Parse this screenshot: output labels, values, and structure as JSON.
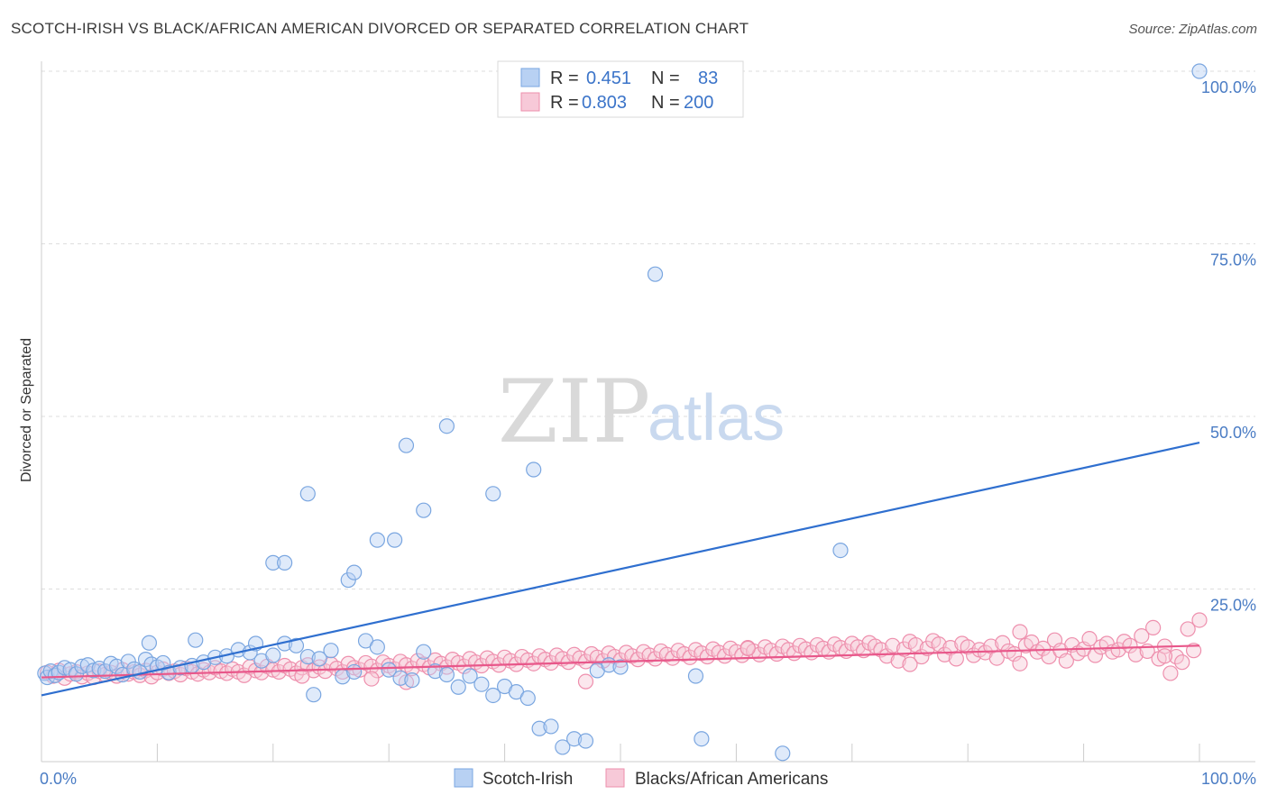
{
  "title": "SCOTCH-IRISH VS BLACK/AFRICAN AMERICAN DIVORCED OR SEPARATED CORRELATION CHART",
  "source": "Source: ZipAtlas.com",
  "watermark": {
    "zip": "ZIP",
    "atlas": "atlas"
  },
  "colors": {
    "blue_stroke": "#7aa6e0",
    "blue_fill": "#b8d1f3",
    "blue_line": "#2f6fcf",
    "pink_stroke": "#ee8fad",
    "pink_fill": "#f7c9d8",
    "pink_line": "#e8578a",
    "grid": "#dddddd",
    "axis_text": "#4a7cc4"
  },
  "legend": {
    "rows": [
      {
        "r_label": "R =",
        "r_value": "0.451",
        "n_label": "N =",
        "n_value": "83"
      },
      {
        "r_label": "R =",
        "r_value": "0.803",
        "n_label": "N =",
        "n_value": "200"
      }
    ]
  },
  "bottom_legend": [
    "Scotch-Irish",
    "Blacks/African Americans"
  ],
  "chart_data": {
    "type": "scatter",
    "ylabel": "Divorced or Separated",
    "xlabel": "",
    "xlim": [
      0,
      100
    ],
    "ylim": [
      0,
      100
    ],
    "x_tick_labels": [
      "0.0%",
      "100.0%"
    ],
    "y_tick_labels": [
      "25.0%",
      "50.0%",
      "75.0%",
      "100.0%"
    ],
    "y_ticks": [
      25,
      50,
      75,
      100
    ],
    "grid": true,
    "legend_position": "top-center",
    "series": [
      {
        "name": "Scotch-Irish",
        "r": 0.451,
        "n": 83,
        "trend": {
          "x": [
            0,
            100
          ],
          "y": [
            9.6,
            46.2
          ]
        },
        "points": [
          [
            0.3,
            12.8
          ],
          [
            0.5,
            12.2
          ],
          [
            0.8,
            13.1
          ],
          [
            1.2,
            12.5
          ],
          [
            1.5,
            12.9
          ],
          [
            2,
            13.6
          ],
          [
            2.5,
            13.3
          ],
          [
            3,
            12.7
          ],
          [
            3.5,
            13.8
          ],
          [
            4,
            14.0
          ],
          [
            4.5,
            13.2
          ],
          [
            5,
            13.5
          ],
          [
            5.5,
            13.1
          ],
          [
            6,
            14.2
          ],
          [
            6.5,
            13.8
          ],
          [
            7,
            12.6
          ],
          [
            7.5,
            14.5
          ],
          [
            8,
            13.4
          ],
          [
            8.5,
            13.0
          ],
          [
            9,
            14.8
          ],
          [
            9.5,
            14.1
          ],
          [
            10,
            13.7
          ],
          [
            10.5,
            14.3
          ],
          [
            11,
            12.9
          ],
          [
            12,
            13.6
          ],
          [
            13,
            13.9
          ],
          [
            14,
            14.4
          ],
          [
            15,
            15.1
          ],
          [
            16,
            15.3
          ],
          [
            17,
            16.2
          ],
          [
            18,
            15.8
          ],
          [
            19,
            14.6
          ],
          [
            20,
            15.4
          ],
          [
            21,
            17.1
          ],
          [
            22,
            16.8
          ],
          [
            23,
            15.2
          ],
          [
            24,
            14.9
          ],
          [
            25,
            16.1
          ],
          [
            26,
            12.3
          ],
          [
            27,
            13.0
          ],
          [
            28,
            17.5
          ],
          [
            29,
            16.6
          ],
          [
            30,
            13.3
          ],
          [
            31,
            12.1
          ],
          [
            32,
            11.8
          ],
          [
            33,
            15.9
          ],
          [
            34,
            13.1
          ],
          [
            35,
            12.6
          ],
          [
            36,
            10.8
          ],
          [
            37,
            12.4
          ],
          [
            38,
            11.2
          ],
          [
            39,
            9.6
          ],
          [
            40,
            10.9
          ],
          [
            41,
            10.1
          ],
          [
            42,
            9.2
          ],
          [
            43,
            4.8
          ],
          [
            44,
            5.1
          ],
          [
            45,
            2.1
          ],
          [
            46,
            3.3
          ],
          [
            47,
            3.0
          ],
          [
            48,
            13.2
          ],
          [
            49,
            14.0
          ],
          [
            50,
            13.7
          ],
          [
            9.3,
            17.2
          ],
          [
            13.3,
            17.6
          ],
          [
            18.5,
            17.1
          ],
          [
            20,
            28.8
          ],
          [
            21,
            28.8
          ],
          [
            23,
            38.8
          ],
          [
            23.5,
            9.7
          ],
          [
            26.5,
            26.3
          ],
          [
            27,
            27.4
          ],
          [
            29,
            32.1
          ],
          [
            30.5,
            32.1
          ],
          [
            31.5,
            45.8
          ],
          [
            33,
            36.4
          ],
          [
            35,
            48.6
          ],
          [
            39,
            38.8
          ],
          [
            42.5,
            42.3
          ],
          [
            53,
            70.6
          ],
          [
            57,
            3.3
          ],
          [
            69,
            30.6
          ],
          [
            100,
            100
          ],
          [
            56.5,
            12.4
          ],
          [
            64,
            1.2
          ]
        ]
      },
      {
        "name": "Blacks/African Americans",
        "r": 0.803,
        "n": 200,
        "trend": {
          "x": [
            0,
            100
          ],
          "y": [
            12.2,
            16.8
          ]
        },
        "points": [
          [
            0.5,
            12.9
          ],
          [
            1,
            12.4
          ],
          [
            1.5,
            13.2
          ],
          [
            2,
            12.1
          ],
          [
            2.5,
            12.7
          ],
          [
            3,
            13.0
          ],
          [
            3.5,
            12.3
          ],
          [
            4,
            12.8
          ],
          [
            4.5,
            12.2
          ],
          [
            5,
            13.1
          ],
          [
            5.5,
            12.6
          ],
          [
            6,
            12.9
          ],
          [
            6.5,
            12.4
          ],
          [
            7,
            13.3
          ],
          [
            7.5,
            12.7
          ],
          [
            8,
            13.0
          ],
          [
            8.5,
            12.5
          ],
          [
            9,
            13.2
          ],
          [
            9.5,
            12.3
          ],
          [
            10,
            12.9
          ],
          [
            10.5,
            13.4
          ],
          [
            11,
            12.8
          ],
          [
            11.5,
            13.1
          ],
          [
            12,
            12.6
          ],
          [
            12.5,
            13.5
          ],
          [
            13,
            13.0
          ],
          [
            13.5,
            12.7
          ],
          [
            14,
            13.3
          ],
          [
            14.5,
            12.9
          ],
          [
            15,
            13.6
          ],
          [
            15.5,
            13.1
          ],
          [
            16,
            12.8
          ],
          [
            16.5,
            13.4
          ],
          [
            17,
            13.0
          ],
          [
            17.5,
            12.5
          ],
          [
            18,
            13.7
          ],
          [
            18.5,
            13.2
          ],
          [
            19,
            12.9
          ],
          [
            19.5,
            13.8
          ],
          [
            20,
            13.3
          ],
          [
            20.5,
            13.0
          ],
          [
            21,
            13.9
          ],
          [
            21.5,
            13.4
          ],
          [
            22,
            12.8
          ],
          [
            22.5,
            13.6
          ],
          [
            23,
            14.0
          ],
          [
            23.5,
            13.2
          ],
          [
            24,
            13.7
          ],
          [
            24.5,
            13.1
          ],
          [
            25,
            14.1
          ],
          [
            25.5,
            13.5
          ],
          [
            26,
            13.0
          ],
          [
            26.5,
            14.2
          ],
          [
            27,
            13.6
          ],
          [
            27.5,
            13.3
          ],
          [
            28,
            14.3
          ],
          [
            28.5,
            13.8
          ],
          [
            29,
            13.2
          ],
          [
            29.5,
            14.4
          ],
          [
            30,
            13.9
          ],
          [
            30.5,
            13.4
          ],
          [
            31,
            14.5
          ],
          [
            31.5,
            14.0
          ],
          [
            32,
            13.5
          ],
          [
            32.5,
            14.6
          ],
          [
            33,
            14.1
          ],
          [
            33.5,
            13.6
          ],
          [
            34,
            14.7
          ],
          [
            34.5,
            14.2
          ],
          [
            35,
            13.7
          ],
          [
            35.5,
            14.8
          ],
          [
            36,
            14.3
          ],
          [
            36.5,
            13.8
          ],
          [
            37,
            14.9
          ],
          [
            37.5,
            14.4
          ],
          [
            38,
            13.9
          ],
          [
            38.5,
            15.0
          ],
          [
            39,
            14.5
          ],
          [
            39.5,
            14.0
          ],
          [
            40,
            15.1
          ],
          [
            40.5,
            14.6
          ],
          [
            41,
            14.1
          ],
          [
            41.5,
            15.2
          ],
          [
            42,
            14.7
          ],
          [
            42.5,
            14.2
          ],
          [
            43,
            15.3
          ],
          [
            43.5,
            14.8
          ],
          [
            44,
            14.3
          ],
          [
            44.5,
            15.4
          ],
          [
            45,
            14.9
          ],
          [
            45.5,
            14.4
          ],
          [
            46,
            15.5
          ],
          [
            46.5,
            15.0
          ],
          [
            47,
            14.5
          ],
          [
            47.5,
            15.6
          ],
          [
            48,
            15.1
          ],
          [
            48.5,
            14.6
          ],
          [
            49,
            15.7
          ],
          [
            49.5,
            15.2
          ],
          [
            50,
            14.7
          ],
          [
            50.5,
            15.8
          ],
          [
            51,
            15.3
          ],
          [
            51.5,
            14.8
          ],
          [
            52,
            15.9
          ],
          [
            52.5,
            15.4
          ],
          [
            53,
            14.9
          ],
          [
            53.5,
            16.0
          ],
          [
            54,
            15.5
          ],
          [
            54.5,
            15.0
          ],
          [
            55,
            16.1
          ],
          [
            55.5,
            15.6
          ],
          [
            56,
            15.1
          ],
          [
            56.5,
            16.2
          ],
          [
            57,
            15.7
          ],
          [
            57.5,
            15.2
          ],
          [
            58,
            16.3
          ],
          [
            58.5,
            15.8
          ],
          [
            59,
            15.3
          ],
          [
            59.5,
            16.4
          ],
          [
            60,
            15.9
          ],
          [
            60.5,
            15.4
          ],
          [
            61,
            16.5
          ],
          [
            61.5,
            16.0
          ],
          [
            62,
            15.5
          ],
          [
            62.5,
            16.6
          ],
          [
            63,
            16.1
          ],
          [
            63.5,
            15.6
          ],
          [
            64,
            16.7
          ],
          [
            64.5,
            16.2
          ],
          [
            65,
            15.7
          ],
          [
            65.5,
            16.8
          ],
          [
            66,
            16.3
          ],
          [
            66.5,
            15.8
          ],
          [
            67,
            16.9
          ],
          [
            67.5,
            16.4
          ],
          [
            68,
            15.9
          ],
          [
            68.5,
            17.0
          ],
          [
            69,
            16.5
          ],
          [
            69.5,
            16.0
          ],
          [
            70,
            17.1
          ],
          [
            70.5,
            16.6
          ],
          [
            71,
            16.1
          ],
          [
            71.5,
            17.2
          ],
          [
            72,
            16.7
          ],
          [
            72.5,
            16.2
          ],
          [
            73,
            15.3
          ],
          [
            73.5,
            16.8
          ],
          [
            74,
            14.6
          ],
          [
            74.5,
            16.3
          ],
          [
            75,
            17.4
          ],
          [
            75.5,
            16.9
          ],
          [
            76,
            15.2
          ],
          [
            76.5,
            16.4
          ],
          [
            77,
            17.5
          ],
          [
            77.5,
            17.0
          ],
          [
            78,
            15.5
          ],
          [
            78.5,
            16.5
          ],
          [
            79,
            14.9
          ],
          [
            79.5,
            17.1
          ],
          [
            80,
            16.6
          ],
          [
            80.5,
            15.4
          ],
          [
            81,
            16.2
          ],
          [
            81.5,
            15.8
          ],
          [
            82,
            16.7
          ],
          [
            82.5,
            15.0
          ],
          [
            83,
            17.2
          ],
          [
            83.5,
            16.0
          ],
          [
            84,
            15.6
          ],
          [
            84.5,
            14.2
          ],
          [
            85,
            16.8
          ],
          [
            85.5,
            17.3
          ],
          [
            86,
            15.9
          ],
          [
            86.5,
            16.4
          ],
          [
            87,
            15.2
          ],
          [
            87.5,
            17.6
          ],
          [
            88,
            16.1
          ],
          [
            88.5,
            14.6
          ],
          [
            89,
            16.9
          ],
          [
            89.5,
            15.7
          ],
          [
            90,
            16.3
          ],
          [
            90.5,
            17.8
          ],
          [
            91,
            15.4
          ],
          [
            91.5,
            16.6
          ],
          [
            92,
            17.1
          ],
          [
            92.5,
            15.9
          ],
          [
            93,
            16.2
          ],
          [
            93.5,
            17.4
          ],
          [
            94,
            16.8
          ],
          [
            94.5,
            15.5
          ],
          [
            95,
            18.2
          ],
          [
            95.5,
            16.0
          ],
          [
            96,
            19.4
          ],
          [
            96.5,
            14.9
          ],
          [
            97,
            16.7
          ],
          [
            97.5,
            12.8
          ],
          [
            98,
            15.2
          ],
          [
            98.5,
            14.4
          ],
          [
            99,
            19.2
          ],
          [
            99.5,
            16.1
          ],
          [
            100,
            20.5
          ],
          [
            22.5,
            12.4
          ],
          [
            31.5,
            11.5
          ],
          [
            47,
            11.6
          ],
          [
            61,
            16.4
          ],
          [
            75,
            14.1
          ],
          [
            84.5,
            18.8
          ],
          [
            97,
            15.3
          ],
          [
            28.5,
            12.0
          ]
        ]
      }
    ]
  }
}
